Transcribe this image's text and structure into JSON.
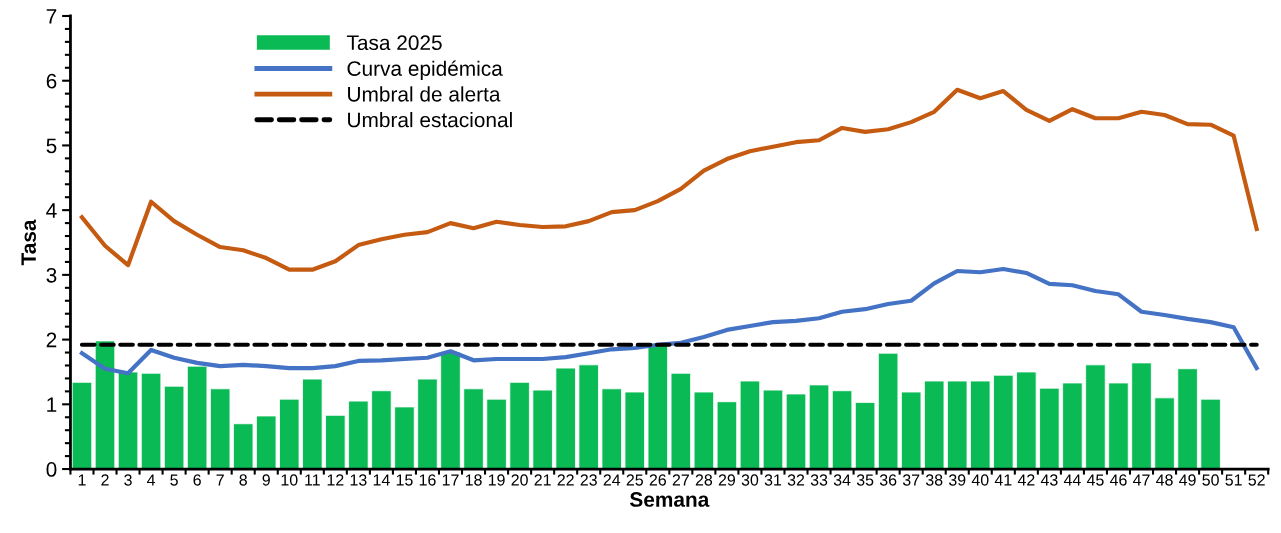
{
  "chart_data": {
    "type": "bar",
    "xlabel": "Semana",
    "ylabel": "Tasa",
    "categories": [
      "1",
      "2",
      "3",
      "4",
      "5",
      "6",
      "7",
      "8",
      "9",
      "10",
      "11",
      "12",
      "13",
      "14",
      "15",
      "16",
      "17",
      "18",
      "19",
      "20",
      "21",
      "22",
      "23",
      "24",
      "25",
      "26",
      "27",
      "28",
      "29",
      "30",
      "31",
      "32",
      "33",
      "34",
      "35",
      "36",
      "37",
      "38",
      "39",
      "40",
      "41",
      "42",
      "43",
      "44",
      "45",
      "46",
      "47",
      "48",
      "49",
      "50",
      "51",
      "52"
    ],
    "series": [
      {
        "name": "Tasa 2025",
        "color": "#0aba55",
        "values": [
          1.34,
          1.98,
          1.5,
          1.48,
          1.28,
          1.59,
          1.24,
          0.7,
          0.82,
          1.08,
          1.39,
          0.83,
          1.05,
          1.21,
          0.96,
          1.39,
          1.81,
          1.24,
          1.08,
          1.34,
          1.22,
          1.56,
          1.61,
          1.24,
          1.19,
          1.93,
          1.48,
          1.19,
          1.04,
          1.36,
          1.22,
          1.16,
          1.3,
          1.21,
          1.03,
          1.79,
          1.19,
          1.36,
          1.36,
          1.36,
          1.45,
          1.5,
          1.25,
          1.33,
          1.61,
          1.33,
          1.64,
          1.1,
          1.55,
          1.08,
          null,
          null
        ]
      },
      {
        "name": "Curva epidémica",
        "type": "line",
        "color": "#4472c4",
        "line_style": "solid",
        "values": [
          1.79,
          1.55,
          1.48,
          1.84,
          1.72,
          1.64,
          1.59,
          1.61,
          1.59,
          1.56,
          1.56,
          1.59,
          1.67,
          1.68,
          1.7,
          1.72,
          1.82,
          1.68,
          1.7,
          1.7,
          1.7,
          1.73,
          1.79,
          1.85,
          1.87,
          1.92,
          1.95,
          2.04,
          2.15,
          2.21,
          2.27,
          2.29,
          2.33,
          2.43,
          2.47,
          2.55,
          2.6,
          2.87,
          3.06,
          3.04,
          3.09,
          3.03,
          2.86,
          2.84,
          2.75,
          2.7,
          2.43,
          2.38,
          2.32,
          2.27,
          2.19,
          1.56
        ]
      },
      {
        "name": "Umbral de alerta",
        "type": "line",
        "color": "#c55a11",
        "line_style": "solid",
        "values": [
          3.89,
          3.45,
          3.15,
          4.13,
          3.83,
          3.62,
          3.43,
          3.38,
          3.26,
          3.08,
          3.08,
          3.21,
          3.46,
          3.55,
          3.62,
          3.66,
          3.8,
          3.72,
          3.82,
          3.77,
          3.74,
          3.75,
          3.83,
          3.97,
          4.0,
          4.14,
          4.33,
          4.61,
          4.79,
          4.91,
          4.98,
          5.05,
          5.08,
          5.27,
          5.21,
          5.25,
          5.36,
          5.52,
          5.86,
          5.73,
          5.84,
          5.55,
          5.38,
          5.56,
          5.42,
          5.42,
          5.52,
          5.47,
          5.33,
          5.32,
          5.15,
          3.71
        ]
      },
      {
        "name": "Umbral estacional",
        "type": "line",
        "color": "#000000",
        "line_style": "dashed",
        "values": [
          1.92,
          1.92,
          1.92,
          1.92,
          1.92,
          1.92,
          1.92,
          1.92,
          1.92,
          1.92,
          1.92,
          1.92,
          1.92,
          1.92,
          1.92,
          1.92,
          1.92,
          1.92,
          1.92,
          1.92,
          1.92,
          1.92,
          1.92,
          1.92,
          1.92,
          1.92,
          1.92,
          1.92,
          1.92,
          1.92,
          1.92,
          1.92,
          1.92,
          1.92,
          1.92,
          1.92,
          1.92,
          1.92,
          1.92,
          1.92,
          1.92,
          1.92,
          1.92,
          1.92,
          1.92,
          1.92,
          1.92,
          1.92,
          1.92,
          1.92,
          1.92,
          1.92
        ]
      }
    ],
    "ylim": [
      0,
      7
    ],
    "yticks": [
      0,
      {
        "value": 0.2,
        "label": null
      },
      {
        "value": 0.4,
        "label": null
      },
      {
        "value": 0.6,
        "label": null
      },
      {
        "value": 0.8,
        "label": null
      },
      1,
      {
        "value": 1.2,
        "label": null
      },
      {
        "value": 1.4,
        "label": null
      },
      {
        "value": 1.6,
        "label": null
      },
      {
        "value": 1.8,
        "label": null
      },
      2,
      {
        "value": 2.2,
        "label": null
      },
      {
        "value": 2.4,
        "label": null
      },
      {
        "value": 2.6,
        "label": null
      },
      {
        "value": 2.8,
        "label": null
      },
      3,
      {
        "value": 3.2,
        "label": null
      },
      {
        "value": 3.4,
        "label": null
      },
      {
        "value": 3.6,
        "label": null
      },
      {
        "value": 3.8,
        "label": null
      },
      4,
      {
        "value": 4.2,
        "label": null
      },
      {
        "value": 4.4,
        "label": null
      },
      {
        "value": 4.6,
        "label": null
      },
      {
        "value": 4.8,
        "label": null
      },
      5,
      {
        "value": 5.2,
        "label": null
      },
      {
        "value": 5.4,
        "label": null
      },
      {
        "value": 5.6,
        "label": null
      },
      {
        "value": 5.8,
        "label": null
      },
      6,
      {
        "value": 6.2,
        "label": null
      },
      {
        "value": 6.4,
        "label": null
      },
      {
        "value": 6.6,
        "label": null
      },
      {
        "value": 6.8,
        "label": null
      },
      7
    ],
    "grid": false,
    "legend": "top left",
    "marker": "none"
  }
}
